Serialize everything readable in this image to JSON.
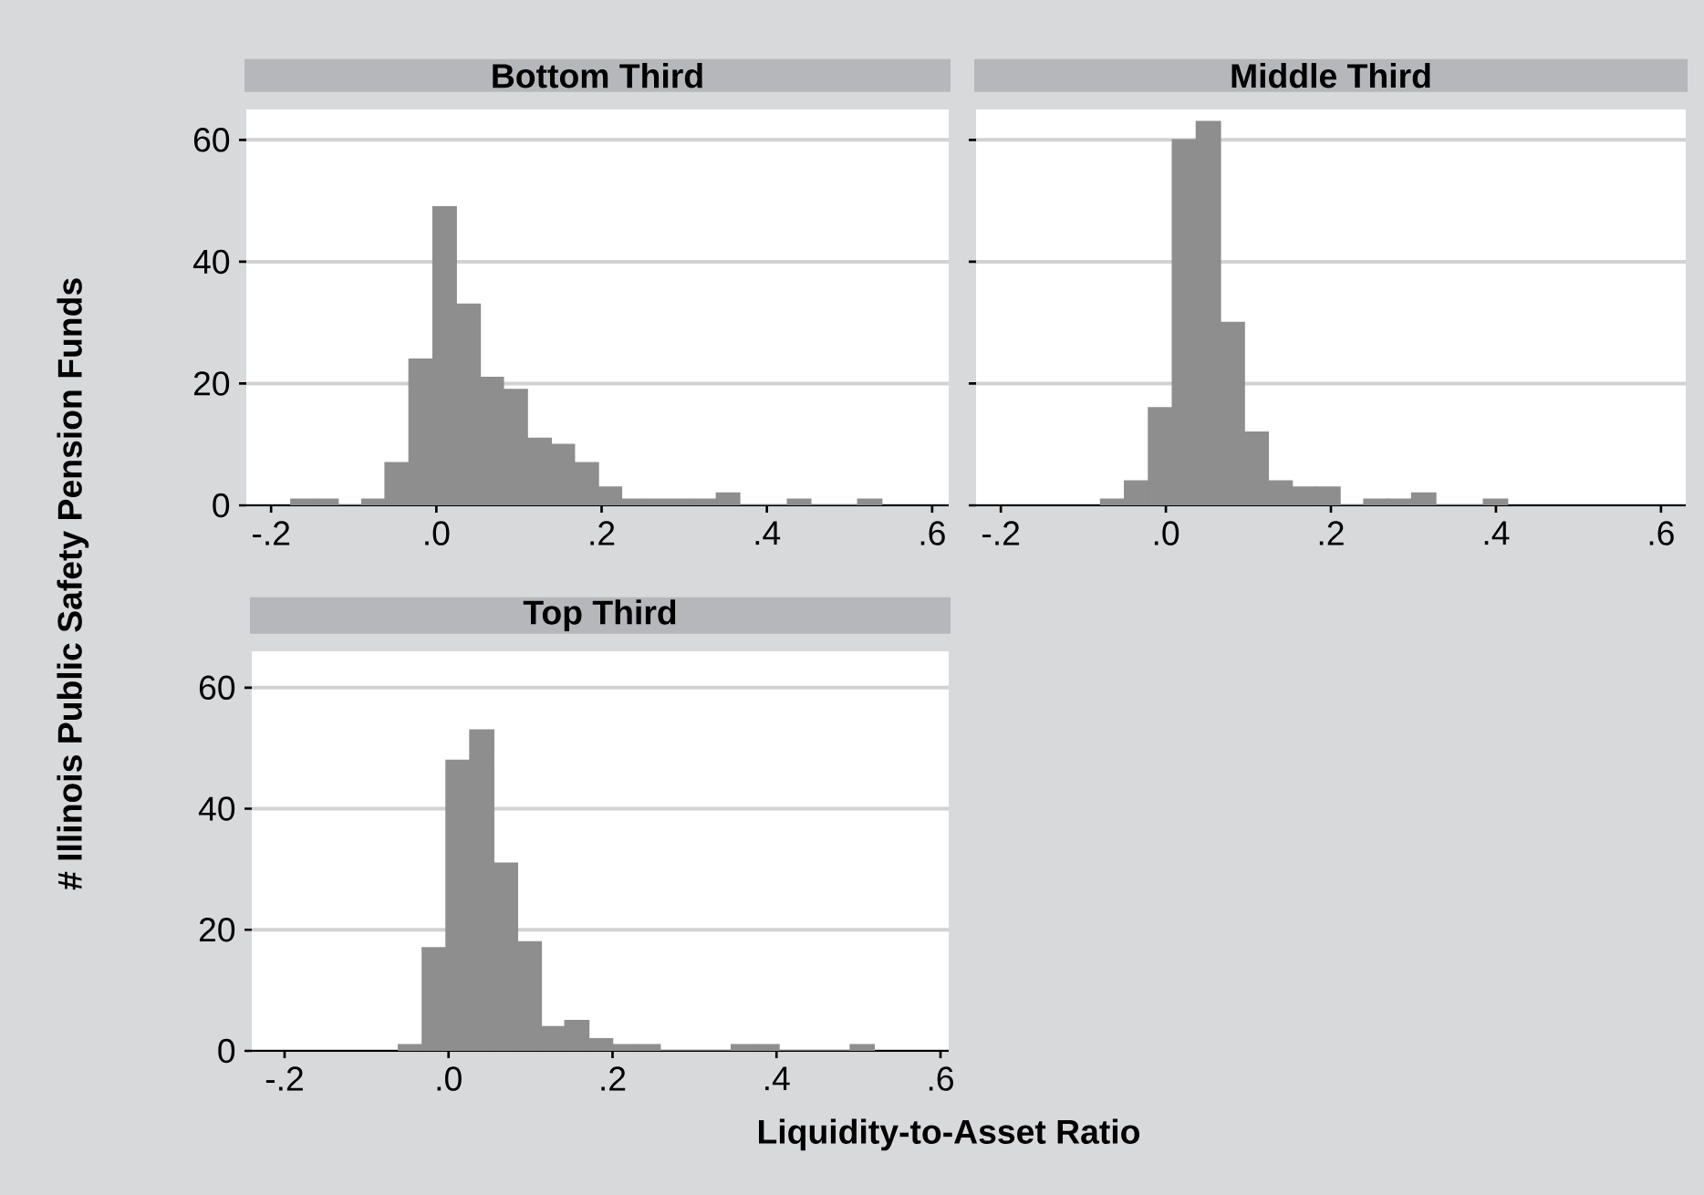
{
  "chart_data": [
    {
      "type": "histogram",
      "title": "Bottom Third",
      "ylabel": "# Illinois Public Safety Pension Funds",
      "color": "#8e8e8e",
      "bins": [
        -0.176,
        -0.147,
        -0.119,
        -0.09,
        -0.062,
        -0.033,
        -0.004,
        0.024,
        0.053,
        0.081,
        0.11,
        0.139,
        0.167,
        0.196,
        0.224,
        0.253,
        0.282,
        0.31,
        0.339,
        0.367,
        0.425,
        0.453,
        0.51,
        0.539
      ],
      "values": [
        1,
        1,
        0,
        1,
        7,
        24,
        49,
        33,
        21,
        19,
        11,
        10,
        7,
        3,
        1,
        1,
        1,
        1,
        2,
        0,
        1,
        0,
        1
      ],
      "xlim": [
        -0.23,
        0.62
      ],
      "ylim": [
        0,
        65
      ],
      "xticks": [
        {
          "value": -0.2,
          "label": "-.2"
        },
        {
          "value": 0,
          "label": ".0"
        },
        {
          "value": 0.2,
          "label": ".2"
        },
        {
          "value": 0.4,
          "label": ".4"
        },
        {
          "value": 0.6,
          "label": ".6"
        }
      ],
      "yticks": [
        0,
        20,
        40,
        60
      ],
      "grid": "y"
    },
    {
      "type": "histogram",
      "title": "Middle Third",
      "color": "#8e8e8e",
      "bins": [
        -0.079,
        -0.05,
        -0.021,
        0.008,
        0.037,
        0.066,
        0.095,
        0.124,
        0.153,
        0.182,
        0.211,
        0.24,
        0.269,
        0.298,
        0.327,
        0.385,
        0.414
      ],
      "values": [
        1,
        4,
        16,
        60,
        63,
        30,
        12,
        4,
        3,
        3,
        0,
        1,
        1,
        2,
        0,
        1
      ],
      "xlim": [
        -0.23,
        0.63
      ],
      "ylim": [
        0,
        65
      ],
      "xticks": [
        {
          "value": -0.2,
          "label": "-.2"
        },
        {
          "value": 0,
          "label": ".0"
        },
        {
          "value": 0.2,
          "label": ".2"
        },
        {
          "value": 0.4,
          "label": ".4"
        },
        {
          "value": 0.6,
          "label": ".6"
        }
      ],
      "yticks": [
        0,
        20,
        40,
        60
      ],
      "grid": "y",
      "tick_labels": "x"
    },
    {
      "type": "histogram",
      "title": "Top Third",
      "xlabel": "Liquidity-to-Asset Ratio",
      "color": "#8e8e8e",
      "bins": [
        -0.061,
        -0.032,
        -0.003,
        0.026,
        0.055,
        0.084,
        0.113,
        0.142,
        0.171,
        0.2,
        0.229,
        0.258,
        0.345,
        0.374,
        0.403,
        0.49,
        0.519
      ],
      "values": [
        1,
        17,
        48,
        53,
        31,
        18,
        4,
        5,
        2,
        1,
        1,
        0,
        1,
        1,
        0,
        1
      ],
      "xlim": [
        -0.24,
        0.61
      ],
      "ylim": [
        0,
        66
      ],
      "xticks": [
        {
          "value": -0.2,
          "label": "-.2"
        },
        {
          "value": 0,
          "label": ".0"
        },
        {
          "value": 0.2,
          "label": ".2"
        },
        {
          "value": 0.4,
          "label": ".4"
        },
        {
          "value": 0.6,
          "label": ".6"
        }
      ],
      "yticks": [
        0,
        20,
        40,
        60
      ],
      "grid": "y"
    }
  ]
}
